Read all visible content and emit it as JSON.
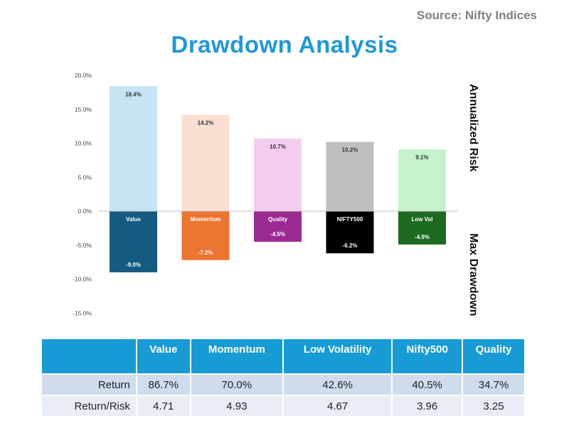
{
  "source": "Source: Nifty Indices",
  "title": "Drawdown Analysis",
  "side_labels": {
    "top": "Annualized Risk",
    "bottom": "Max Drawdown"
  },
  "chart_data": {
    "type": "bar",
    "categories": [
      "Value",
      "Momentum",
      "Quality",
      "NIFTY500",
      "Low Vol"
    ],
    "series": [
      {
        "name": "Annualized Risk",
        "values": [
          18.4,
          14.2,
          10.7,
          10.2,
          9.1
        ],
        "labels": [
          "18.4%",
          "14.2%",
          "10.7%",
          "10.2%",
          "9.1%"
        ],
        "colors": [
          "#c5e4f4",
          "#fbdfd2",
          "#f2cdee",
          "#bfbfbf",
          "#c5f2cc"
        ]
      },
      {
        "name": "Max Drawdown",
        "values": [
          -9.0,
          -7.2,
          -4.5,
          -6.2,
          -4.9
        ],
        "labels": [
          "-9.0%",
          "-7.2%",
          "-4.5%",
          "-6.2%",
          "-4.9%"
        ],
        "colors": [
          "#155a80",
          "#ec7531",
          "#9b2b92",
          "#000000",
          "#1d6a20"
        ]
      }
    ],
    "yticks": [
      "20.0%",
      "15.0%",
      "10.0%",
      "5.0%",
      "0.0%",
      "-5.0%",
      "-10.0%",
      "-15.0%"
    ],
    "ylim": [
      -15,
      20
    ],
    "grid": false
  },
  "table": {
    "headers": [
      "",
      "Value",
      "Momentum",
      "Low Volatility",
      "Nifty500",
      "Quality"
    ],
    "rows": [
      {
        "label": "Return",
        "values": [
          "86.7%",
          "70.0%",
          "42.6%",
          "40.5%",
          "34.7%"
        ]
      },
      {
        "label": "Return/Risk",
        "values": [
          "4.71",
          "4.93",
          "4.67",
          "3.96",
          "3.25"
        ]
      }
    ]
  },
  "colors": {
    "title": "#1f98d6",
    "table_header": "#169bd5",
    "row1": "#cfdcec",
    "row2": "#e9eef6"
  }
}
